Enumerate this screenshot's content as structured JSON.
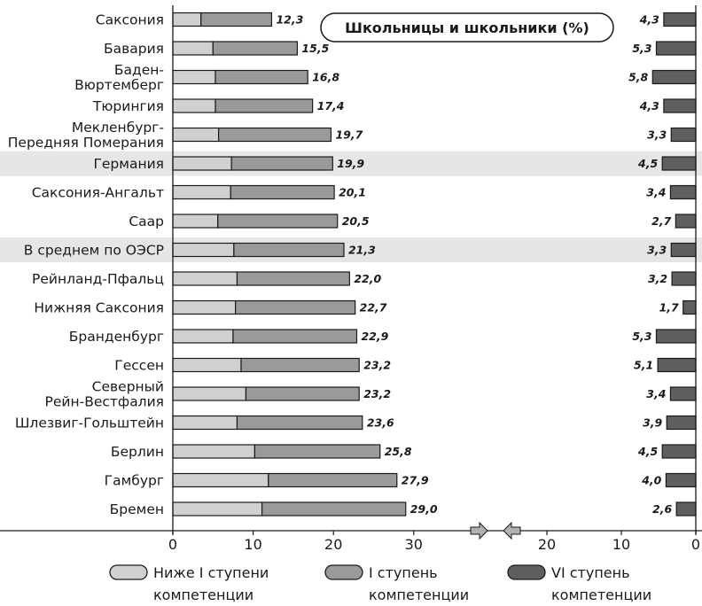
{
  "chart_data": {
    "type": "bar",
    "title": "Школьницы и школьники (%)",
    "categories": [
      "Саксония",
      "Бавария",
      "Баден-Вюртемберг",
      "Тюрингия",
      "Мекленбург-Передняя Померания",
      "Германия",
      "Саксония-Ангальт",
      "Саар",
      "В среднем по ОЭСР",
      "Рейнланд-Пфальц",
      "Нижняя Саксония",
      "Бранденбург",
      "Гессен",
      "Северный Рейн-Вестфалия",
      "Шлезвиг-Гольштейн",
      "Берлин",
      "Гамбург",
      "Бремен"
    ],
    "category_lines": [
      [
        "Саксония"
      ],
      [
        "Бавария"
      ],
      [
        "Баден-",
        "Вюртемберг"
      ],
      [
        "Тюрингия"
      ],
      [
        "Мекленбург-",
        "Передняя Померания"
      ],
      [
        "Германия"
      ],
      [
        "Саксония-Ангальт"
      ],
      [
        "Саар"
      ],
      [
        "В среднем по ОЭСР"
      ],
      [
        "Рейнланд-Пфальц"
      ],
      [
        "Нижняя Саксония"
      ],
      [
        "Бранденбург"
      ],
      [
        "Гессен"
      ],
      [
        "Северный",
        "Рейн-Вестфалия"
      ],
      [
        "Шлезвиг-Гольштейн"
      ],
      [
        "Берлин"
      ],
      [
        "Гамбург"
      ],
      [
        "Бремен"
      ]
    ],
    "highlighted": [
      "Германия",
      "В среднем по ОЭСР"
    ],
    "series": [
      {
        "name": "Ниже I ступени компетенции",
        "color": "#d0d0d0",
        "values": [
          3.5,
          5.0,
          5.3,
          5.3,
          5.7,
          7.3,
          7.2,
          5.6,
          7.6,
          8.0,
          7.8,
          7.5,
          8.5,
          9.1,
          8.0,
          10.2,
          11.9,
          11.1
        ]
      },
      {
        "name": "I ступень компетенции",
        "color": "#9a9a9a",
        "values": [
          8.8,
          10.5,
          11.5,
          12.1,
          14.0,
          12.6,
          12.9,
          14.9,
          13.7,
          14.0,
          14.9,
          15.4,
          14.7,
          14.1,
          15.6,
          15.6,
          16.0,
          17.9
        ]
      },
      {
        "name": "VI ступень компетенции",
        "color": "#5f5f5f",
        "values": [
          4.3,
          5.3,
          5.8,
          4.3,
          3.3,
          4.5,
          3.4,
          2.7,
          3.3,
          3.2,
          1.7,
          5.3,
          5.1,
          3.4,
          3.9,
          4.5,
          4.0,
          2.6
        ]
      }
    ],
    "totals_low": [
      "12,3",
      "15,5",
      "16,8",
      "17,4",
      "19,7",
      "19,9",
      "20,1",
      "20,5",
      "21,3",
      "22,0",
      "22,7",
      "22,9",
      "23,2",
      "23,2",
      "23,6",
      "25,8",
      "27,9",
      "29,0"
    ],
    "totals_high": [
      "4,3",
      "5,3",
      "5,8",
      "4,3",
      "3,3",
      "4,5",
      "3,4",
      "2,7",
      "3,3",
      "3,2",
      "1,7",
      "5,3",
      "5,1",
      "3,4",
      "3,9",
      "4,5",
      "4,0",
      "2,6"
    ],
    "left_axis": {
      "ticks": [
        0,
        10,
        20,
        30
      ],
      "range": [
        0,
        36
      ]
    },
    "right_axis": {
      "ticks": [
        0,
        10,
        20
      ],
      "range": [
        0,
        24
      ],
      "reversed": true
    },
    "grid": false,
    "legend_position": "bottom",
    "legend": [
      {
        "lines": [
          "Ниже I ступени",
          "компетенции"
        ],
        "color": "#d0d0d0"
      },
      {
        "lines": [
          "I ступень",
          "компетенции"
        ],
        "color": "#9a9a9a"
      },
      {
        "lines": [
          "VI ступень",
          "компетенции"
        ],
        "color": "#5f5f5f"
      }
    ]
  }
}
